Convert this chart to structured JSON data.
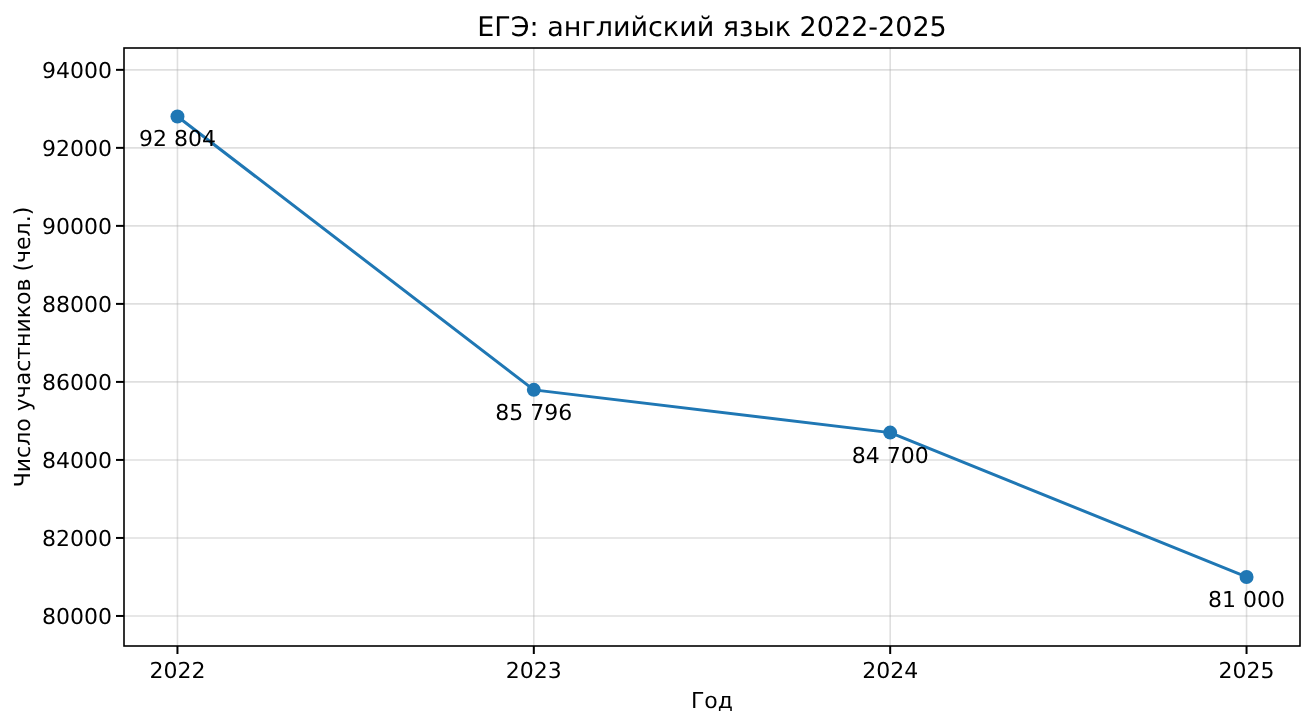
{
  "chart_data": {
    "type": "line",
    "title": "ЕГЭ: английский язык 2022-2025",
    "xlabel": "Год",
    "ylabel": "Число участников (чел.)",
    "x": [
      2022,
      2023,
      2024,
      2025
    ],
    "series": [
      {
        "color": "#1f77b4",
        "values": [
          92804,
          85796,
          84700,
          81000
        ],
        "value_labels": [
          "92 804",
          "85 796",
          "84 700",
          "81 000"
        ]
      }
    ],
    "xlim": [
      2021.85,
      2025.15
    ],
    "xticks": [
      2022,
      2023,
      2024,
      2025
    ],
    "ylim": [
      79230,
      94560
    ],
    "yticks": [
      80000,
      82000,
      84000,
      86000,
      88000,
      90000,
      92000,
      94000
    ],
    "grid": true,
    "marker": "circle",
    "line_style": "solid"
  }
}
